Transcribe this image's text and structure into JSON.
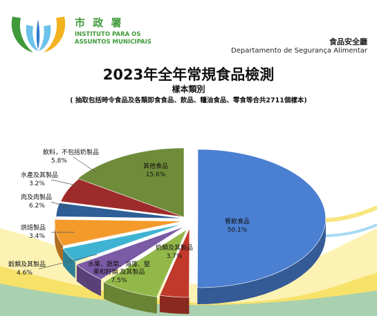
{
  "header": {
    "org_name_cn": "市 政 署",
    "org_name_pt_line1": "INSTITUTO PARA OS",
    "org_name_pt_line2": "ASSUNTOS MUNICIPAIS",
    "department_cn": "食品安全廳",
    "department_pt": "Departamento de Segurança Alimentar"
  },
  "colors": {
    "green": "#3f9a3a",
    "wave_yellow": "#f5dc4a",
    "wave_blue": "#6cc2ea"
  },
  "chart_data": {
    "type": "pie",
    "title": "2023年全年常規食品檢測",
    "subtitle": "樣本類別",
    "note": "( 抽取包括時令食品及各類即食食品、飲品、糧油食品、零食等合共2711個樣本)",
    "slices": [
      {
        "label": "餐飲食品",
        "value": 50.1,
        "value_label": "50.1%",
        "color": "#4a7fd1"
      },
      {
        "label": "奶類及其製品",
        "value": 3.7,
        "value_label": "3.7%",
        "color": "#c0392b"
      },
      {
        "label": "水果、蔬菜、海藻、堅果和籽類 及其製品",
        "value": 7.5,
        "value_label": "7.5%",
        "color": "#93b84a"
      },
      {
        "label": "穀類及其製品",
        "value": 4.6,
        "value_label": "4.6%",
        "color": "#7b5aa6"
      },
      {
        "label": "烘焙製品",
        "value": 3.4,
        "value_label": "3.4%",
        "color": "#3fb4d2"
      },
      {
        "label": "肉及肉製品",
        "value": 6.2,
        "value_label": "6.2%",
        "color": "#f39a2b"
      },
      {
        "label": "水產及其製品",
        "value": 3.2,
        "value_label": "3.2%",
        "color": "#2f5d95"
      },
      {
        "label": "飲料，不包括奶製品",
        "value": 5.8,
        "value_label": "5.8%",
        "color": "#9e2b2b"
      },
      {
        "label": "其他食品",
        "value": 15.6,
        "value_label": "15.6%",
        "color": "#6f8c3a"
      }
    ]
  }
}
